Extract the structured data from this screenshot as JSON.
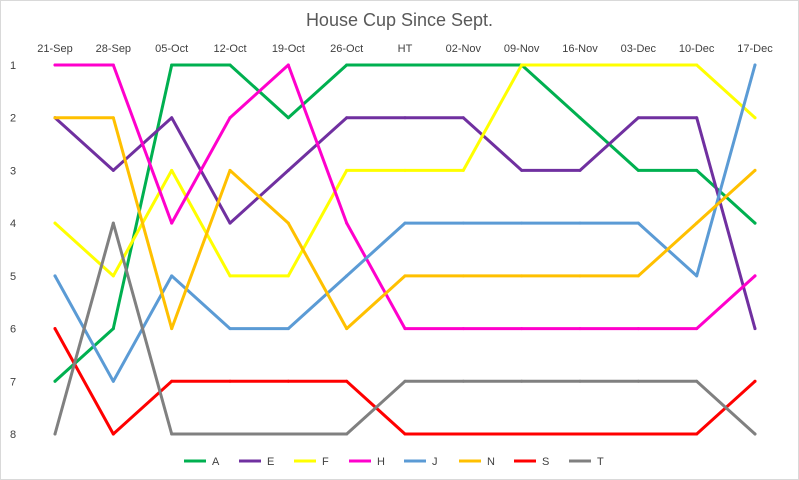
{
  "chart_data": {
    "type": "line",
    "title": "House Cup Since Sept.",
    "categories": [
      "21-Sep",
      "28-Sep",
      "05-Oct",
      "12-Oct",
      "19-Oct",
      "26-Oct",
      "HT",
      "02-Nov",
      "09-Nov",
      "16-Nov",
      "03-Dec",
      "10-Dec",
      "17-Dec"
    ],
    "y_ticks": [
      1,
      2,
      3,
      4,
      5,
      6,
      7,
      8
    ],
    "ylim": [
      1,
      8
    ],
    "y_reversed": true,
    "grid": false,
    "legend_position": "bottom",
    "series": [
      {
        "name": "A",
        "color": "#00b050",
        "values": [
          7,
          6,
          1,
          1,
          2,
          1,
          1,
          1,
          1,
          2,
          3,
          3,
          4
        ]
      },
      {
        "name": "E",
        "color": "#7030a0",
        "values": [
          2,
          3,
          2,
          4,
          3,
          2,
          2,
          2,
          3,
          3,
          2,
          2,
          6
        ]
      },
      {
        "name": "F",
        "color": "#ffff00",
        "values": [
          4,
          5,
          3,
          5,
          5,
          3,
          3,
          3,
          1,
          1,
          1,
          1,
          2
        ]
      },
      {
        "name": "H",
        "color": "#ff00cc",
        "values": [
          1,
          1,
          4,
          2,
          1,
          4,
          6,
          6,
          6,
          6,
          6,
          6,
          5
        ]
      },
      {
        "name": "J",
        "color": "#5b9bd5",
        "values": [
          5,
          7,
          5,
          6,
          6,
          5,
          4,
          4,
          4,
          4,
          4,
          5,
          1
        ]
      },
      {
        "name": "N",
        "color": "#ffc000",
        "values": [
          2,
          2,
          6,
          3,
          4,
          6,
          5,
          5,
          5,
          5,
          5,
          4,
          3
        ]
      },
      {
        "name": "S",
        "color": "#ff0000",
        "values": [
          6,
          8,
          7,
          7,
          7,
          7,
          8,
          8,
          8,
          8,
          8,
          8,
          7
        ]
      },
      {
        "name": "T",
        "color": "#808080",
        "values": [
          8,
          4,
          8,
          8,
          8,
          8,
          7,
          7,
          7,
          7,
          7,
          7,
          8
        ]
      }
    ]
  }
}
